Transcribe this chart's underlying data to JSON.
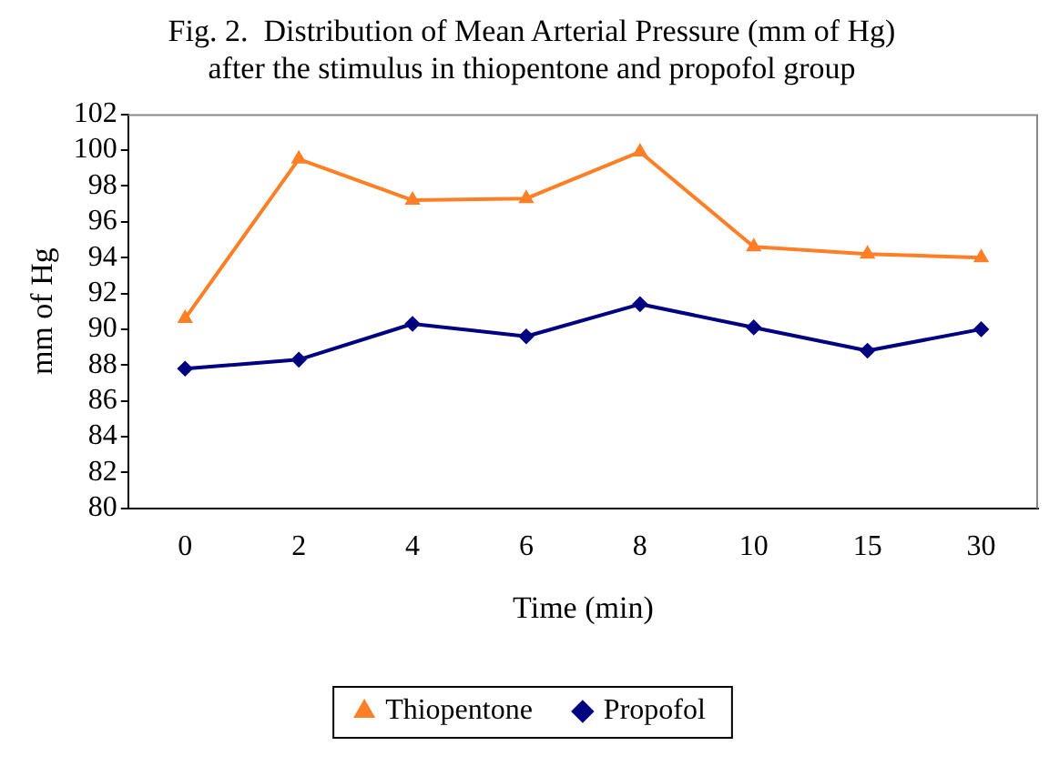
{
  "chart_data": {
    "type": "line",
    "title": "Fig. 2.  Distribution of Mean Arterial Pressure (mm of Hg)\nafter the stimulus in thiopentone and propofol group",
    "xlabel": "Time (min)",
    "ylabel": "mm of Hg",
    "categories": [
      "0",
      "2",
      "4",
      "6",
      "8",
      "10",
      "15",
      "30"
    ],
    "series": [
      {
        "name": "Thiopentone",
        "color": "#ff7f27",
        "marker": "triangle",
        "values": [
          90.6,
          99.5,
          97.2,
          97.3,
          99.9,
          94.6,
          94.2,
          94.0
        ]
      },
      {
        "name": "Propofol",
        "color": "#000080",
        "marker": "diamond",
        "values": [
          87.8,
          88.3,
          90.3,
          89.6,
          91.4,
          90.1,
          88.8,
          90.0
        ]
      }
    ],
    "ylim": [
      80,
      102
    ],
    "yticks": [
      80,
      82,
      84,
      86,
      88,
      90,
      92,
      94,
      96,
      98,
      100,
      102
    ],
    "grid": false,
    "legend": "bottom",
    "line_style": "solid"
  }
}
